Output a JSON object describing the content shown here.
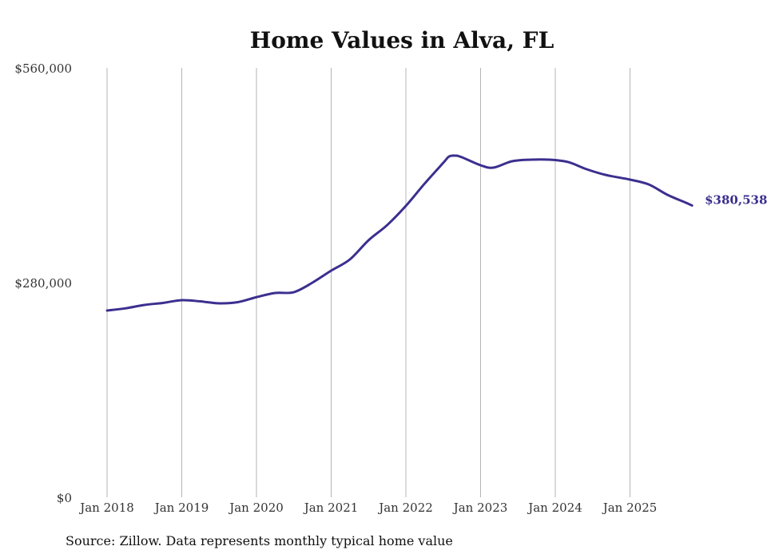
{
  "chart_data": {
    "type": "line",
    "title": "Home Values in Alva, FL",
    "xlabel": "",
    "ylabel": "",
    "ylim": [
      0,
      560000
    ],
    "y_ticks": [
      0,
      280000,
      560000
    ],
    "y_tick_labels": [
      "$0",
      "$280,000",
      "$560,000"
    ],
    "x_ticks": [
      2018,
      2019,
      2020,
      2021,
      2022,
      2023,
      2024,
      2025
    ],
    "x_tick_labels": [
      "Jan 2018",
      "Jan 2019",
      "Jan 2020",
      "Jan 2021",
      "Jan 2022",
      "Jan 2023",
      "Jan 2024",
      "Jan 2025"
    ],
    "grid": "vertical",
    "series": [
      {
        "name": "Typical home value",
        "color": "#3b2f8f",
        "x": [
          2018.0,
          2018.25,
          2018.5,
          2018.75,
          2019.0,
          2019.25,
          2019.5,
          2019.75,
          2020.0,
          2020.25,
          2020.5,
          2020.75,
          2021.0,
          2021.25,
          2021.5,
          2021.75,
          2022.0,
          2022.25,
          2022.5,
          2022.58,
          2022.67,
          2022.75,
          2023.0,
          2023.17,
          2023.42,
          2023.67,
          2023.92,
          2024.17,
          2024.42,
          2024.67,
          2025.0,
          2025.25,
          2025.5,
          2025.75,
          2025.83
        ],
        "values": [
          243600,
          246500,
          250900,
          253500,
          257100,
          255500,
          253000,
          254500,
          261000,
          266500,
          267500,
          280000,
          295600,
          310200,
          335200,
          355000,
          380000,
          409000,
          436100,
          444500,
          445500,
          443400,
          433000,
          429900,
          438200,
          440300,
          440300,
          437200,
          427800,
          420500,
          414300,
          408000,
          394500,
          384100,
          380538
        ]
      }
    ],
    "end_label": "$380,538"
  },
  "source": "Source: Zillow. Data represents monthly typical home value"
}
